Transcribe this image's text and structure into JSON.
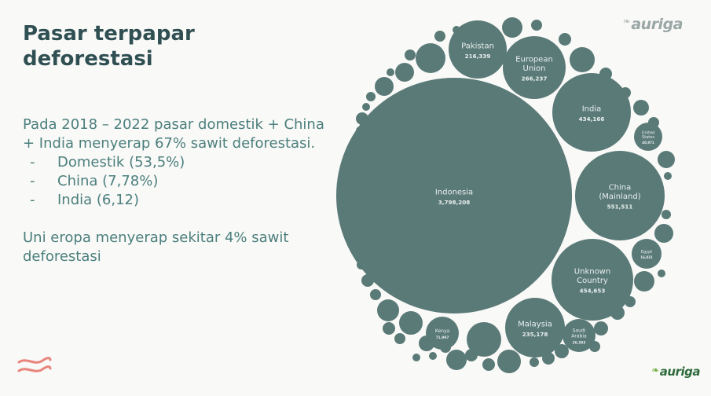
{
  "slide": {
    "title": "Pasar terpapar deforestasi",
    "intro": "Pada 2018 – 2022 pasar domestik + China + India menyerap 67% sawit deforestasi.",
    "bullets": [
      "Domestik (53,5%)",
      "China (7,78%)",
      "India (6,12)"
    ],
    "bullet_marker": "-",
    "closing": "Uni eropa menyerap sekitar 4% sawit deforestasi"
  },
  "logos": {
    "top": "auriga",
    "bottom": "auriga",
    "leaf_icon": "leaf-icon"
  },
  "colors": {
    "background": "#f9f9f7",
    "bubble": "#5a7a77",
    "bubble_text": "#e8efee",
    "title": "#2f4f52",
    "body_text": "#4b7f7d",
    "accent_wave": "#e8857c"
  },
  "chart_data": {
    "type": "bubble",
    "title": "",
    "series": [
      {
        "values": [
          {
            "label": "Indonesia",
            "value": 3798208
          },
          {
            "label": "Unknown Country",
            "value": 454653
          },
          {
            "label": "China (Mainland)",
            "value": 551511
          },
          {
            "label": "India",
            "value": 434166
          },
          {
            "label": "Malaysia",
            "value": 235178
          },
          {
            "label": "Pakistan",
            "value": 216339
          },
          {
            "label": "European Union",
            "value": 266237
          },
          {
            "label": "United States",
            "value": 40971
          },
          {
            "label": "Egypt",
            "value": 16831
          },
          {
            "label": "Kenya",
            "value": 71997
          },
          {
            "label": "Saudi Arabia",
            "value": 26393
          }
        ]
      }
    ]
  }
}
